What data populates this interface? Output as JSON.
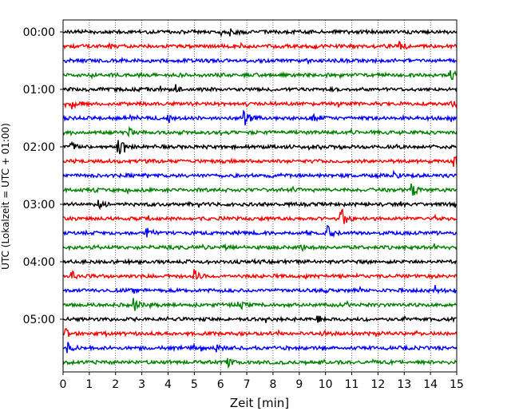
{
  "chart_data": {
    "type": "line",
    "title": "",
    "xlabel": "Zeit  [min]",
    "ylabel": "UTC (Lokalzeit = UTC + 01:00)",
    "xlim": [
      0,
      15
    ],
    "x_ticks": [
      "0",
      "1",
      "2",
      "3",
      "4",
      "5",
      "6",
      "7",
      "8",
      "9",
      "10",
      "11",
      "12",
      "13",
      "14",
      "15"
    ],
    "y_ticks": [
      "00:00",
      "01:00",
      "02:00",
      "03:00",
      "04:00",
      "05:00"
    ],
    "grid": {
      "x": true,
      "y": false
    },
    "trace_interval_min": 15,
    "trace_colors": [
      "#000000",
      "#ff0000",
      "#0000ff",
      "#008000"
    ],
    "traces": [
      {
        "start": "00:00",
        "color": "#000000",
        "events": [
          [
            6.4,
            0.8
          ]
        ]
      },
      {
        "start": "00:15",
        "color": "#ff0000",
        "events": [
          [
            12.8,
            0.9
          ]
        ]
      },
      {
        "start": "00:30",
        "color": "#0000ff",
        "events": []
      },
      {
        "start": "00:45",
        "color": "#008000",
        "events": [
          [
            14.8,
            0.6
          ]
        ]
      },
      {
        "start": "01:00",
        "color": "#000000",
        "events": [
          [
            4.3,
            0.6
          ]
        ]
      },
      {
        "start": "01:15",
        "color": "#ff0000",
        "events": [
          [
            0.3,
            0.7
          ],
          [
            14.8,
            0.6
          ]
        ]
      },
      {
        "start": "01:30",
        "color": "#0000ff",
        "events": [
          [
            6.9,
            1.2
          ],
          [
            9.5,
            0.8
          ],
          [
            4.0,
            0.6
          ]
        ]
      },
      {
        "start": "01:45",
        "color": "#008000",
        "events": [
          [
            2.5,
            0.6
          ]
        ]
      },
      {
        "start": "02:00",
        "color": "#000000",
        "events": [
          [
            2.1,
            1.4
          ],
          [
            0.3,
            0.6
          ]
        ]
      },
      {
        "start": "02:15",
        "color": "#ff0000",
        "events": [
          [
            14.9,
            0.6
          ]
        ]
      },
      {
        "start": "02:30",
        "color": "#0000ff",
        "events": [
          [
            12.6,
            0.5
          ]
        ]
      },
      {
        "start": "02:45",
        "color": "#008000",
        "events": [
          [
            13.3,
            0.9
          ]
        ]
      },
      {
        "start": "03:00",
        "color": "#000000",
        "events": [
          [
            1.3,
            0.8
          ]
        ]
      },
      {
        "start": "03:15",
        "color": "#ff0000",
        "events": [
          [
            10.6,
            1.5
          ]
        ]
      },
      {
        "start": "03:30",
        "color": "#0000ff",
        "events": [
          [
            3.2,
            0.8
          ],
          [
            10.1,
            0.8
          ]
        ]
      },
      {
        "start": "03:45",
        "color": "#008000",
        "events": [
          [
            6.1,
            0.6
          ],
          [
            9.1,
            0.5
          ]
        ]
      },
      {
        "start": "04:00",
        "color": "#000000",
        "events": []
      },
      {
        "start": "04:15",
        "color": "#ff0000",
        "events": [
          [
            0.3,
            0.7
          ],
          [
            5.0,
            0.9
          ]
        ]
      },
      {
        "start": "04:30",
        "color": "#0000ff",
        "events": [
          [
            14.2,
            0.6
          ]
        ]
      },
      {
        "start": "04:45",
        "color": "#008000",
        "events": [
          [
            2.7,
            0.9
          ],
          [
            6.7,
            0.6
          ]
        ]
      },
      {
        "start": "05:00",
        "color": "#000000",
        "events": [
          [
            9.7,
            0.5
          ]
        ]
      },
      {
        "start": "05:15",
        "color": "#ff0000",
        "events": [
          [
            0.1,
            0.6
          ],
          [
            9.9,
            0.5
          ]
        ]
      },
      {
        "start": "05:30",
        "color": "#0000ff",
        "events": [
          [
            0.2,
            0.6
          ],
          [
            5.8,
            0.5
          ]
        ]
      },
      {
        "start": "05:45",
        "color": "#008000",
        "events": [
          [
            6.3,
            0.5
          ]
        ]
      }
    ]
  }
}
